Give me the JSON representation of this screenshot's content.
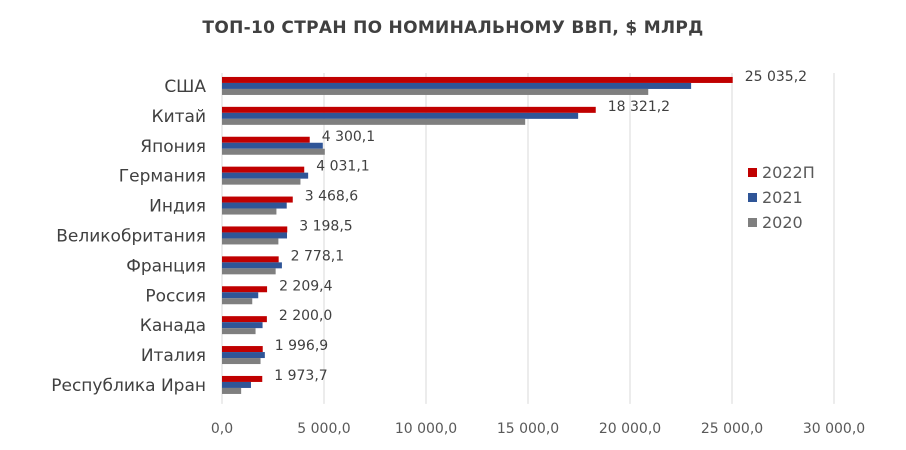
{
  "chart_data": {
    "type": "bar",
    "orientation": "horizontal",
    "title": "ТОП-10 СТРАН ПО НОМИНАЛЬНОМУ ВВП, $ МЛРД",
    "categories": [
      "США",
      "Китай",
      "Япония",
      "Германия",
      "Индия",
      "Великобритания",
      "Франция",
      "Россия",
      "Канада",
      "Италия",
      "Республика Иран"
    ],
    "series": [
      {
        "name": "2022П",
        "color": "#c00000",
        "values": [
          25035.2,
          18321.2,
          4300.1,
          4031.1,
          3468.6,
          3198.5,
          2778.1,
          2209.4,
          2200.0,
          1996.9,
          1973.7
        ]
      },
      {
        "name": "2021",
        "color": "#2f5597",
        "values": [
          22996,
          17458,
          4941,
          4223,
          3173,
          3187,
          2937,
          1776,
          1988,
          2100,
          1420
        ]
      },
      {
        "name": "2020",
        "color": "#7f7f7f",
        "values": [
          20894,
          14862,
          5040,
          3846,
          2668,
          2764,
          2630,
          1483,
          1645,
          1889,
          939
        ]
      }
    ],
    "data_labels": [
      "25 035,2",
      "18 321,2",
      "4 300,1",
      "4 031,1",
      "3 468,6",
      "3 198,5",
      "2 778,1",
      "2 209,4",
      "2 200,0",
      "1 996,9",
      "1 973,7"
    ],
    "x_ticks": [
      0,
      5000,
      10000,
      15000,
      20000,
      25000,
      30000
    ],
    "x_tick_labels": [
      "0,0",
      "5 000,0",
      "10 000,0",
      "15 000,0",
      "20 000,0",
      "25 000,0",
      "30 000,0"
    ],
    "xlim": [
      0,
      30000
    ],
    "grid": true,
    "legend_position": "right"
  }
}
